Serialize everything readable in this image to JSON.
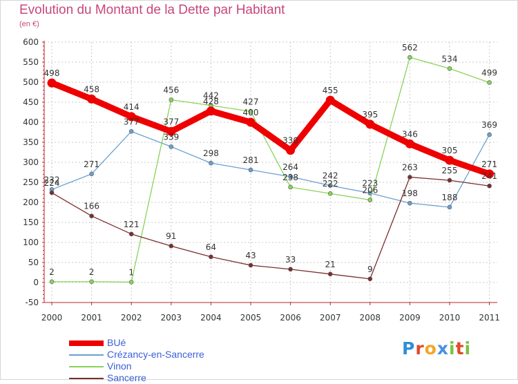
{
  "title": "Evolution du Montant de la Dette par Habitant",
  "subtitle": "(en €)",
  "brand": {
    "letters": [
      {
        "ch": "P",
        "color": "#2f8fd6"
      },
      {
        "ch": "r",
        "color": "#e04a2a"
      },
      {
        "ch": "o",
        "color": "#f5a623"
      },
      {
        "ch": "x",
        "color": "#4a90e2"
      },
      {
        "ch": "i",
        "color": "#7ac143"
      },
      {
        "ch": "t",
        "color": "#e04a2a"
      },
      {
        "ch": "i",
        "color": "#7ac143"
      }
    ]
  },
  "chart_data": {
    "type": "line",
    "x": [
      "2000",
      "2001",
      "2002",
      "2003",
      "2004",
      "2005",
      "2006",
      "2007",
      "2008",
      "2009",
      "2010",
      "2011"
    ],
    "ylim": [
      -50,
      600
    ],
    "yticks": [
      -50,
      0,
      50,
      100,
      150,
      200,
      250,
      300,
      350,
      400,
      450,
      500,
      550,
      600
    ],
    "grid": true,
    "legend_position": "bottom-left",
    "series": [
      {
        "name": "BUé",
        "color": "#ee0000",
        "values": [
          498,
          458,
          414,
          377,
          428,
          400,
          330,
          455,
          395,
          346,
          305,
          271
        ]
      },
      {
        "name": "Crézancy-en-Sancerre",
        "color": "#6aa0cf",
        "values": [
          232,
          271,
          377,
          339,
          298,
          281,
          264,
          242,
          223,
          198,
          188,
          369
        ]
      },
      {
        "name": "Vinon",
        "color": "#88d35a",
        "values": [
          2,
          2,
          1,
          456,
          442,
          427,
          238,
          222,
          206,
          562,
          534,
          499
        ]
      },
      {
        "name": "Sancerre",
        "color": "#7a2e2e",
        "values": [
          224,
          166,
          121,
          91,
          64,
          43,
          33,
          21,
          9,
          263,
          255,
          241
        ]
      }
    ]
  }
}
